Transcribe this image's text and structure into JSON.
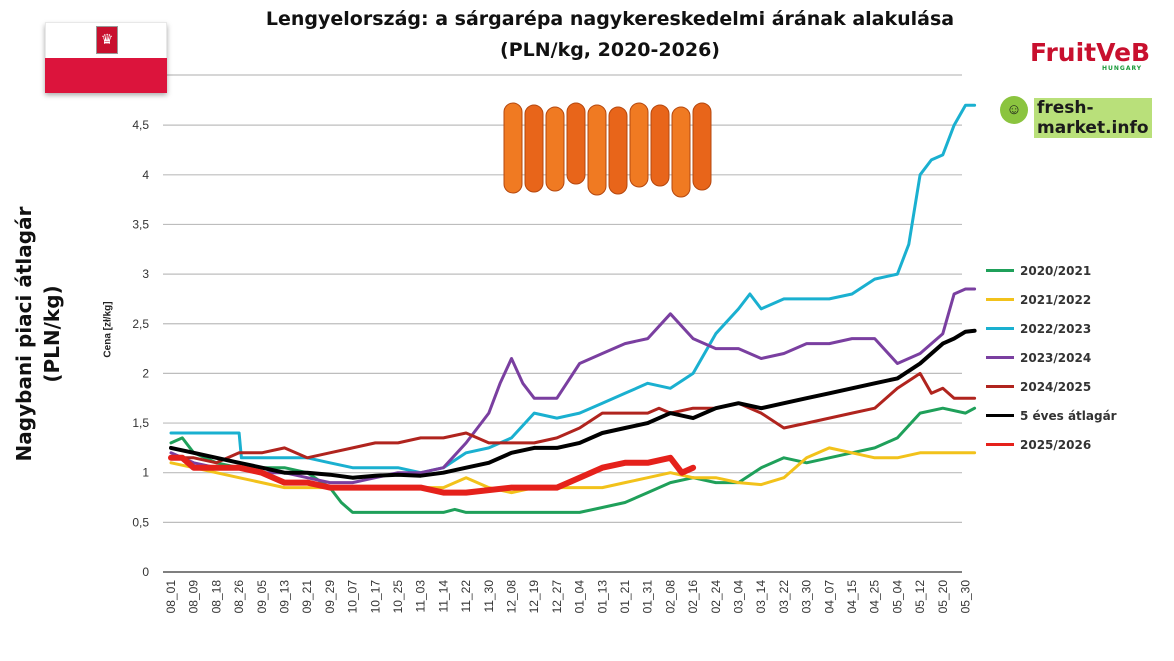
{
  "chart_data": {
    "type": "line",
    "title_line1": "Lengyelország: a sárgarépa nagykereskedelmi árának alakulása",
    "title_line2": "(PLN/kg, 2020-2026)",
    "ylabel": "Nagybani piaci átlagár (PLN/kg)",
    "ylabel_secondary": "Cena [zł/kg]",
    "ylim": [
      0,
      5
    ],
    "yticks": [
      "0",
      "0,5",
      "1",
      "1,5",
      "2",
      "2,5",
      "3",
      "3,5",
      "4",
      "4,5"
    ],
    "xticks": [
      "08_01",
      "08_09",
      "08_18",
      "08_26",
      "09_05",
      "09_13",
      "09_21",
      "09_29",
      "10_07",
      "10_17",
      "10_25",
      "11_03",
      "11_14",
      "11_22",
      "11_30",
      "12_08",
      "12_19",
      "12_27",
      "01_04",
      "01_13",
      "01_21",
      "01_31",
      "02_08",
      "02_16",
      "02_24",
      "03_04",
      "03_14",
      "03_22",
      "03_30",
      "04_07",
      "04_15",
      "04_25",
      "05_04",
      "05_12",
      "05_20",
      "05_30"
    ],
    "grid": "horizontal",
    "legend_position": "right",
    "series": [
      {
        "name": "2020/2021",
        "color": "#1fa05a",
        "width": 3,
        "points": [
          [
            0,
            1.3
          ],
          [
            0.5,
            1.35
          ],
          [
            1,
            1.2
          ],
          [
            2,
            1.1
          ],
          [
            3,
            1.05
          ],
          [
            4,
            1.05
          ],
          [
            5,
            1.05
          ],
          [
            6,
            1.0
          ],
          [
            7,
            0.85
          ],
          [
            7.5,
            0.7
          ],
          [
            8,
            0.6
          ],
          [
            10,
            0.6
          ],
          [
            12,
            0.6
          ],
          [
            12.5,
            0.63
          ],
          [
            13,
            0.6
          ],
          [
            15,
            0.6
          ],
          [
            17,
            0.6
          ],
          [
            18,
            0.6
          ],
          [
            19,
            0.65
          ],
          [
            20,
            0.7
          ],
          [
            21,
            0.8
          ],
          [
            22,
            0.9
          ],
          [
            23,
            0.95
          ],
          [
            24,
            0.9
          ],
          [
            25,
            0.9
          ],
          [
            26,
            1.05
          ],
          [
            27,
            1.15
          ],
          [
            28,
            1.1
          ],
          [
            29,
            1.15
          ],
          [
            30,
            1.2
          ],
          [
            31,
            1.25
          ],
          [
            32,
            1.35
          ],
          [
            33,
            1.6
          ],
          [
            34,
            1.65
          ],
          [
            35,
            1.6
          ],
          [
            35.4,
            1.65
          ]
        ]
      },
      {
        "name": "2021/2022",
        "color": "#f2c21b",
        "width": 3,
        "points": [
          [
            0,
            1.1
          ],
          [
            1,
            1.05
          ],
          [
            2,
            1.0
          ],
          [
            3,
            0.95
          ],
          [
            4,
            0.9
          ],
          [
            5,
            0.85
          ],
          [
            6,
            0.85
          ],
          [
            8,
            0.85
          ],
          [
            10,
            0.85
          ],
          [
            12,
            0.85
          ],
          [
            13,
            0.95
          ],
          [
            14,
            0.85
          ],
          [
            15,
            0.8
          ],
          [
            16,
            0.85
          ],
          [
            17,
            0.85
          ],
          [
            18,
            0.85
          ],
          [
            19,
            0.85
          ],
          [
            20,
            0.9
          ],
          [
            21,
            0.95
          ],
          [
            22,
            1.0
          ],
          [
            23,
            0.95
          ],
          [
            24,
            0.95
          ],
          [
            25,
            0.9
          ],
          [
            26,
            0.88
          ],
          [
            27,
            0.95
          ],
          [
            28,
            1.15
          ],
          [
            29,
            1.25
          ],
          [
            30,
            1.2
          ],
          [
            31,
            1.15
          ],
          [
            32,
            1.15
          ],
          [
            33,
            1.2
          ],
          [
            35,
            1.2
          ],
          [
            35.4,
            1.2
          ]
        ]
      },
      {
        "name": "2022/2023",
        "color": "#1ab0d0",
        "width": 3,
        "points": [
          [
            0,
            1.4
          ],
          [
            2,
            1.4
          ],
          [
            3,
            1.4
          ],
          [
            3.1,
            1.15
          ],
          [
            4,
            1.15
          ],
          [
            6,
            1.15
          ],
          [
            7,
            1.1
          ],
          [
            8,
            1.05
          ],
          [
            10,
            1.05
          ],
          [
            11,
            1.0
          ],
          [
            12,
            1.05
          ],
          [
            13,
            1.2
          ],
          [
            14,
            1.25
          ],
          [
            15,
            1.35
          ],
          [
            16,
            1.6
          ],
          [
            17,
            1.55
          ],
          [
            18,
            1.6
          ],
          [
            19,
            1.7
          ],
          [
            20,
            1.8
          ],
          [
            21,
            1.9
          ],
          [
            22,
            1.85
          ],
          [
            23,
            2.0
          ],
          [
            24,
            2.4
          ],
          [
            25,
            2.65
          ],
          [
            25.5,
            2.8
          ],
          [
            26,
            2.65
          ],
          [
            27,
            2.75
          ],
          [
            28,
            2.75
          ],
          [
            29,
            2.75
          ],
          [
            30,
            2.8
          ],
          [
            31,
            2.95
          ],
          [
            32,
            3.0
          ],
          [
            32.5,
            3.3
          ],
          [
            33,
            4.0
          ],
          [
            33.5,
            4.15
          ],
          [
            34,
            4.2
          ],
          [
            34.5,
            4.5
          ],
          [
            35,
            4.7
          ],
          [
            35.4,
            4.7
          ]
        ]
      },
      {
        "name": "2023/2024",
        "color": "#7a3fa0",
        "width": 3,
        "points": [
          [
            0,
            1.2
          ],
          [
            1,
            1.1
          ],
          [
            2,
            1.05
          ],
          [
            3,
            1.05
          ],
          [
            4,
            1.0
          ],
          [
            5,
            1.0
          ],
          [
            6,
            0.95
          ],
          [
            7,
            0.9
          ],
          [
            8,
            0.9
          ],
          [
            9,
            0.95
          ],
          [
            10,
            1.0
          ],
          [
            11,
            1.0
          ],
          [
            12,
            1.05
          ],
          [
            13,
            1.3
          ],
          [
            14,
            1.6
          ],
          [
            14.5,
            1.9
          ],
          [
            15,
            2.15
          ],
          [
            15.5,
            1.9
          ],
          [
            16,
            1.75
          ],
          [
            17,
            1.75
          ],
          [
            18,
            2.1
          ],
          [
            19,
            2.2
          ],
          [
            20,
            2.3
          ],
          [
            21,
            2.35
          ],
          [
            22,
            2.6
          ],
          [
            23,
            2.35
          ],
          [
            24,
            2.25
          ],
          [
            25,
            2.25
          ],
          [
            26,
            2.15
          ],
          [
            27,
            2.2
          ],
          [
            28,
            2.3
          ],
          [
            29,
            2.3
          ],
          [
            30,
            2.35
          ],
          [
            31,
            2.35
          ],
          [
            32,
            2.1
          ],
          [
            33,
            2.2
          ],
          [
            34,
            2.4
          ],
          [
            34.5,
            2.8
          ],
          [
            35,
            2.85
          ],
          [
            35.4,
            2.85
          ]
        ]
      },
      {
        "name": "2024/2025",
        "color": "#b0241e",
        "width": 3,
        "points": [
          [
            0,
            1.15
          ],
          [
            1,
            1.15
          ],
          [
            2,
            1.1
          ],
          [
            3,
            1.2
          ],
          [
            4,
            1.2
          ],
          [
            5,
            1.25
          ],
          [
            6,
            1.15
          ],
          [
            7,
            1.2
          ],
          [
            8,
            1.25
          ],
          [
            9,
            1.3
          ],
          [
            10,
            1.3
          ],
          [
            11,
            1.35
          ],
          [
            12,
            1.35
          ],
          [
            13,
            1.4
          ],
          [
            14,
            1.3
          ],
          [
            15,
            1.3
          ],
          [
            16,
            1.3
          ],
          [
            17,
            1.35
          ],
          [
            18,
            1.45
          ],
          [
            19,
            1.6
          ],
          [
            20,
            1.6
          ],
          [
            21,
            1.6
          ],
          [
            21.5,
            1.65
          ],
          [
            22,
            1.6
          ],
          [
            23,
            1.65
          ],
          [
            24,
            1.65
          ],
          [
            25,
            1.7
          ],
          [
            26,
            1.6
          ],
          [
            27,
            1.45
          ],
          [
            28,
            1.5
          ],
          [
            29,
            1.55
          ],
          [
            30,
            1.6
          ],
          [
            31,
            1.65
          ],
          [
            32,
            1.85
          ],
          [
            33,
            2.0
          ],
          [
            33.5,
            1.8
          ],
          [
            34,
            1.85
          ],
          [
            34.5,
            1.75
          ],
          [
            35,
            1.75
          ],
          [
            35.4,
            1.75
          ]
        ]
      },
      {
        "name": "5 éves átlagár",
        "color": "#000000",
        "width": 4,
        "points": [
          [
            0,
            1.25
          ],
          [
            1,
            1.2
          ],
          [
            2,
            1.15
          ],
          [
            3,
            1.1
          ],
          [
            4,
            1.05
          ],
          [
            5,
            1.0
          ],
          [
            6,
            1.0
          ],
          [
            7,
            0.98
          ],
          [
            8,
            0.95
          ],
          [
            9,
            0.97
          ],
          [
            10,
            0.98
          ],
          [
            11,
            0.97
          ],
          [
            12,
            1.0
          ],
          [
            13,
            1.05
          ],
          [
            14,
            1.1
          ],
          [
            15,
            1.2
          ],
          [
            16,
            1.25
          ],
          [
            17,
            1.25
          ],
          [
            18,
            1.3
          ],
          [
            19,
            1.4
          ],
          [
            20,
            1.45
          ],
          [
            21,
            1.5
          ],
          [
            22,
            1.6
          ],
          [
            23,
            1.55
          ],
          [
            24,
            1.65
          ],
          [
            25,
            1.7
          ],
          [
            26,
            1.65
          ],
          [
            27,
            1.7
          ],
          [
            28,
            1.75
          ],
          [
            29,
            1.8
          ],
          [
            30,
            1.85
          ],
          [
            31,
            1.9
          ],
          [
            32,
            1.95
          ],
          [
            33,
            2.1
          ],
          [
            34,
            2.3
          ],
          [
            34.5,
            2.35
          ],
          [
            35,
            2.42
          ],
          [
            35.4,
            2.43
          ]
        ]
      },
      {
        "name": "2025/2026",
        "color": "#e5211b",
        "width": 6,
        "points": [
          [
            0,
            1.15
          ],
          [
            0.5,
            1.15
          ],
          [
            1,
            1.05
          ],
          [
            2,
            1.05
          ],
          [
            3,
            1.05
          ],
          [
            4,
            1.0
          ],
          [
            5,
            0.9
          ],
          [
            6,
            0.9
          ],
          [
            7,
            0.85
          ],
          [
            8,
            0.85
          ],
          [
            10,
            0.85
          ],
          [
            11,
            0.85
          ],
          [
            12,
            0.8
          ],
          [
            13,
            0.8
          ],
          [
            15,
            0.85
          ],
          [
            17,
            0.85
          ],
          [
            18,
            0.95
          ],
          [
            19,
            1.05
          ],
          [
            20,
            1.1
          ],
          [
            21,
            1.1
          ],
          [
            22,
            1.15
          ],
          [
            22.5,
            1.0
          ],
          [
            23,
            1.05
          ]
        ]
      }
    ]
  }
}
